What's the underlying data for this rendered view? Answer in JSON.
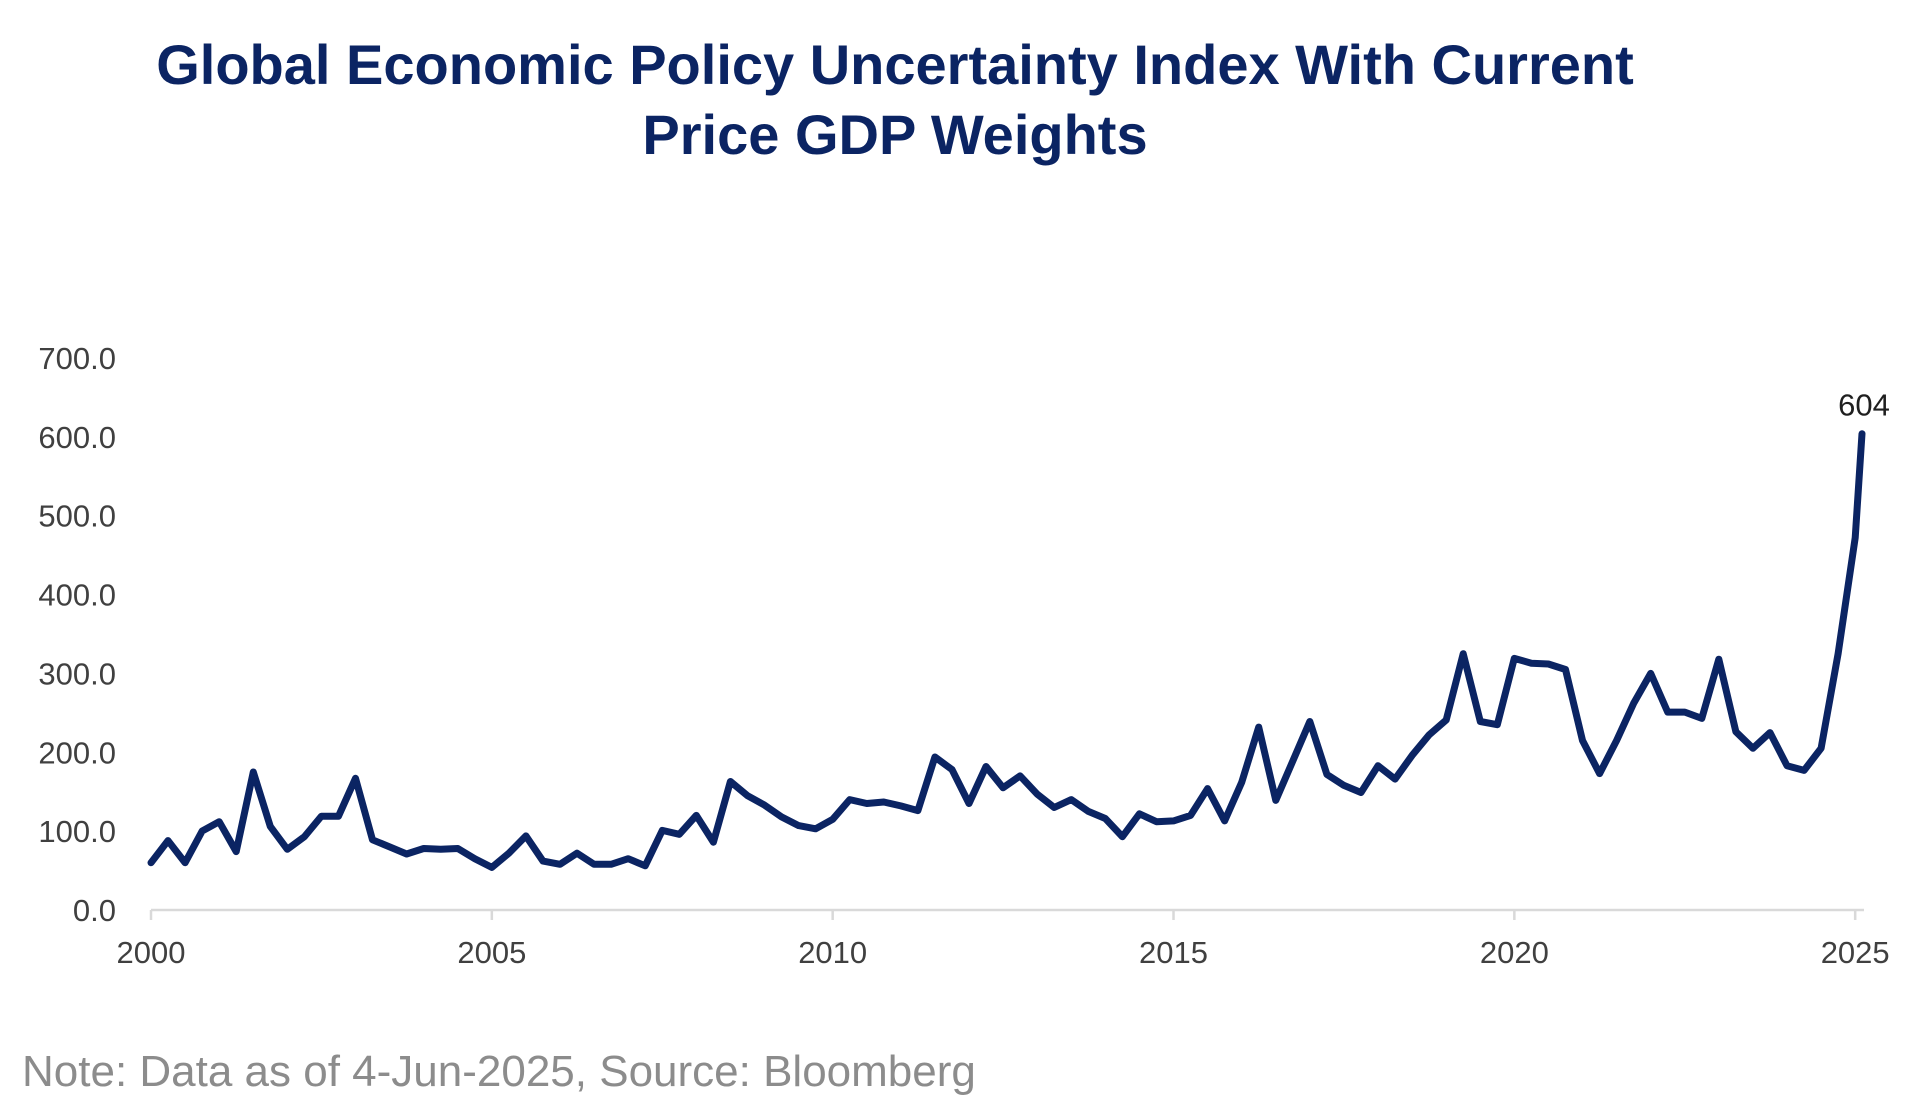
{
  "title_line1": "Global Economic Policy Uncertainty Index With Current",
  "title_line2": "Price GDP Weights",
  "note": "Note: Data as of 4-Jun-2025, Source: Bloomberg",
  "colors": {
    "line": "#0b2463",
    "title": "#0b2463",
    "axis": "#d9d9d9",
    "tick_text": "#404040",
    "note_text": "#8c8c8c"
  },
  "chart_data": {
    "type": "line",
    "title": "Global Economic Policy Uncertainty Index With Current Price GDP Weights",
    "xlabel": "",
    "ylabel": "",
    "xlim": [
      2000,
      2025.1
    ],
    "ylim": [
      0,
      700
    ],
    "x_ticks": [
      2000,
      2005,
      2010,
      2015,
      2020,
      2025
    ],
    "x_tick_labels": [
      "2000",
      "2005",
      "2010",
      "2015",
      "2020",
      "2025"
    ],
    "y_ticks": [
      0,
      100,
      200,
      300,
      400,
      500,
      600,
      700
    ],
    "y_tick_labels": [
      "0.0",
      "100.0",
      "200.0",
      "300.0",
      "400.0",
      "500.0",
      "600.0",
      "700.0"
    ],
    "grid": false,
    "legend": "none",
    "annotations": [
      {
        "x": 2025.1,
        "y": 604,
        "text": "604"
      }
    ],
    "series": [
      {
        "x": [
          2000.0,
          2000.25,
          2000.5,
          2000.75,
          2001.0,
          2001.25,
          2001.5,
          2001.75,
          2002.0,
          2002.25,
          2002.5,
          2002.75,
          2003.0,
          2003.25,
          2003.5,
          2003.75,
          2004.0,
          2004.25,
          2004.5,
          2004.75,
          2005.0,
          2005.25,
          2005.5,
          2005.75,
          2006.0,
          2006.25,
          2006.5,
          2006.75,
          2007.0,
          2007.25,
          2007.5,
          2007.75,
          2008.0,
          2008.25,
          2008.5,
          2008.75,
          2009.0,
          2009.25,
          2009.5,
          2009.75,
          2010.0,
          2010.25,
          2010.5,
          2010.75,
          2011.0,
          2011.25,
          2011.5,
          2011.75,
          2012.0,
          2012.25,
          2012.5,
          2012.75,
          2013.0,
          2013.25,
          2013.5,
          2013.75,
          2014.0,
          2014.25,
          2014.5,
          2014.75,
          2015.0,
          2015.25,
          2015.5,
          2015.75,
          2016.0,
          2016.25,
          2016.5,
          2016.75,
          2017.0,
          2017.25,
          2017.5,
          2017.75,
          2018.0,
          2018.25,
          2018.5,
          2018.75,
          2019.0,
          2019.25,
          2019.5,
          2019.75,
          2020.0,
          2020.25,
          2020.5,
          2020.75,
          2021.0,
          2021.25,
          2021.5,
          2021.75,
          2022.0,
          2022.25,
          2022.5,
          2022.75,
          2023.0,
          2023.25,
          2023.5,
          2023.75,
          2024.0,
          2024.25,
          2024.5,
          2024.75,
          2025.0,
          2025.1
        ],
        "values": [
          60,
          88,
          60,
          100,
          112,
          74,
          175,
          106,
          77,
          93,
          119,
          119,
          167,
          89,
          80,
          71,
          78,
          77,
          78,
          65,
          54,
          72,
          94,
          62,
          58,
          72,
          58,
          58,
          65,
          56,
          101,
          96,
          120,
          86,
          163,
          145,
          133,
          118,
          107,
          103,
          115,
          140,
          135,
          137,
          132,
          126,
          194,
          178,
          135,
          182,
          155,
          170,
          147,
          130,
          140,
          125,
          116,
          93,
          122,
          112,
          113,
          120,
          154,
          113,
          162,
          232,
          139,
          189,
          239,
          172,
          158,
          149,
          183,
          166,
          196,
          222,
          241,
          325,
          239,
          235,
          319,
          313,
          312,
          305,
          215,
          173,
          215,
          262,
          300,
          251,
          251,
          243,
          318,
          226,
          205,
          225,
          183,
          177,
          205,
          325,
          472,
          604
        ]
      }
    ]
  }
}
